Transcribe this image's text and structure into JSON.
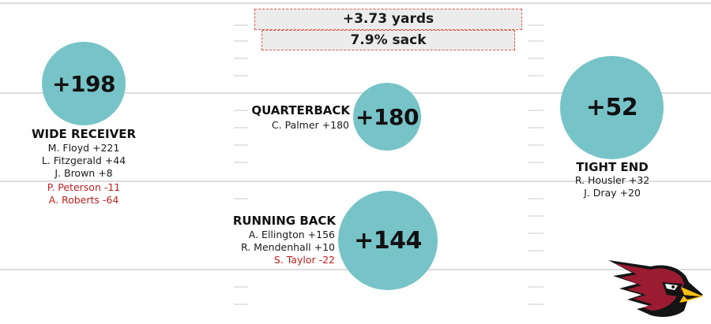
{
  "stats": {
    "yards": "+3.73 yards",
    "sack": "7.9% sack"
  },
  "positions": {
    "wide_receiver": {
      "total": "+198",
      "title": "WIDE RECEIVER",
      "players": [
        {
          "text": "M. Floyd +221"
        },
        {
          "text": "L. Fitzgerald +44"
        },
        {
          "text": "J. Brown +8"
        },
        {
          "text": "P. Peterson -11"
        },
        {
          "text": "A. Roberts -64"
        }
      ]
    },
    "quarterback": {
      "total": "+180",
      "title": "QUARTERBACK",
      "players": [
        {
          "text": "C. Palmer +180"
        }
      ]
    },
    "tight_end": {
      "total": "+52",
      "title": "TIGHT END",
      "players": [
        {
          "text": "R. Housler +32"
        },
        {
          "text": "J. Dray +20"
        }
      ]
    },
    "running_back": {
      "total": "+144",
      "title": "RUNNING BACK",
      "players": [
        {
          "text": "A. Ellington +156"
        },
        {
          "text": "R. Mendenhall +10"
        },
        {
          "text": "S. Taylor -22"
        }
      ]
    }
  },
  "colors": {
    "circle": "#77c4c8",
    "negative": "#c0201f",
    "box_border": "#e05a4f",
    "field_line": "#d9d9d9"
  },
  "logo": {
    "icon": "cardinal-head-icon"
  }
}
